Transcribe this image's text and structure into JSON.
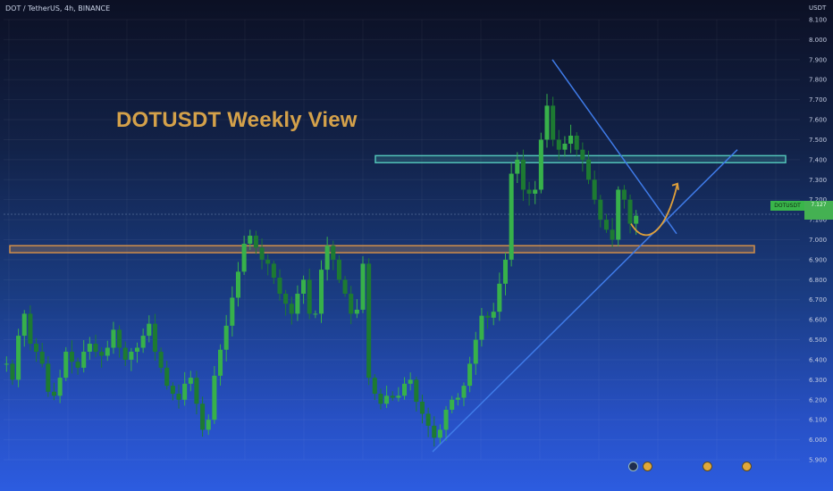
{
  "header": {
    "symbol_line": "DOT / TetherUS, 4h, BINANCE",
    "annotation": "DOTUSDT Weekly View",
    "unit": "USDT",
    "ticker_tag": "DOTUSDT",
    "price_tag": "7.127"
  },
  "colors": {
    "up": "#37b14a",
    "down": "#1d7a32",
    "trendline": "#3f7be8",
    "support_zone": "#d08e4a",
    "resistance_zone": "#52c3b8",
    "arrow": "#e0a03a",
    "title": "#d4a14a"
  },
  "icons": [
    "flash-icon",
    "emoji-icon",
    "emoji-icon",
    "emoji-icon"
  ],
  "chart_data": {
    "type": "line",
    "ylim": [
      5.9,
      8.1
    ],
    "y_ticks": [
      "8.100",
      "8.000",
      "7.900",
      "7.800",
      "7.700",
      "7.600",
      "7.500",
      "7.400",
      "7.300",
      "7.200",
      "7.100",
      "7.000",
      "6.900",
      "6.800",
      "6.700",
      "6.600",
      "6.500",
      "6.400",
      "6.300",
      "6.200",
      "6.100",
      "6.000",
      "5.900"
    ],
    "x_ticks": [
      "",
      "",
      "",
      "",
      "",
      "",
      "",
      "",
      "",
      "",
      "",
      "",
      "",
      ""
    ],
    "series": [
      {
        "values": [
          6.38,
          6.3,
          6.52,
          6.63,
          6.48,
          6.44,
          6.38,
          6.24,
          6.22,
          6.31,
          6.44,
          6.39,
          6.36,
          6.44,
          6.48,
          6.44,
          6.42,
          6.46,
          6.55,
          6.46,
          6.4,
          6.44,
          6.46,
          6.52,
          6.58,
          6.44,
          6.36,
          6.27,
          6.23,
          6.2,
          6.28,
          6.31,
          6.18,
          6.05,
          6.1,
          6.32,
          6.45,
          6.57,
          6.71,
          6.84,
          6.98,
          7.02,
          6.96,
          6.9,
          6.88,
          6.81,
          6.73,
          6.68,
          6.63,
          6.73,
          6.8,
          6.63,
          6.63,
          6.85,
          6.97,
          6.9,
          6.8,
          6.73,
          6.63,
          6.65,
          6.88,
          6.31,
          6.23,
          6.18,
          6.22,
          6.21,
          6.22,
          6.28,
          6.3,
          6.19,
          6.13,
          6.07,
          6.01,
          6.05,
          6.15,
          6.2,
          6.21,
          6.27,
          6.38,
          6.5,
          6.62,
          6.61,
          6.64,
          6.78,
          6.9,
          7.33,
          7.4,
          7.25,
          7.23,
          7.25,
          7.5,
          7.67,
          7.5,
          7.45,
          7.48,
          7.52,
          7.45,
          7.4,
          7.3,
          7.2,
          7.1,
          7.05,
          7.0,
          7.25,
          7.2,
          7.08,
          7.12
        ],
        "annotations": [
          "support zone ~6.95",
          "resistance zone ~7.40",
          "descending trendline from 7.90",
          "ascending trendline from 5.95"
        ]
      }
    ],
    "grid": true
  }
}
